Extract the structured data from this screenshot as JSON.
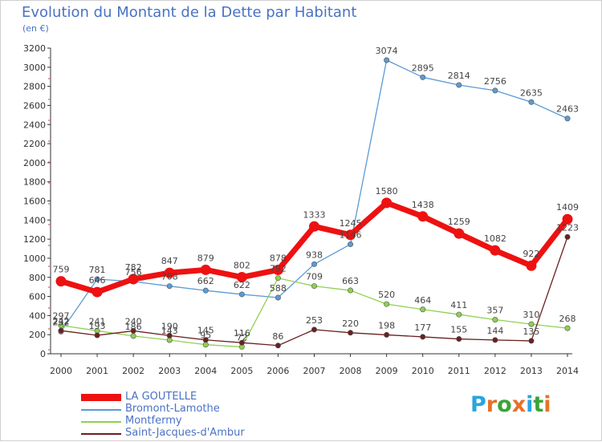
{
  "title": "Evolution du Montant de la Dette par Habitant",
  "subtitle": "(en €)",
  "logo_text": "Proxiti",
  "logo_colors": [
    "#2aa4de",
    "#e8702a",
    "#3aa33a",
    "#e8702a",
    "#2aa4de",
    "#3aa33a",
    "#e8702a"
  ],
  "chart_data": {
    "type": "line",
    "x": [
      2000,
      2001,
      2002,
      2003,
      2004,
      2005,
      2006,
      2007,
      2008,
      2009,
      2010,
      2011,
      2012,
      2013,
      2014
    ],
    "ylim": [
      0,
      3200
    ],
    "yticks": [
      0,
      200,
      400,
      600,
      800,
      1000,
      1200,
      1400,
      1600,
      1800,
      2000,
      2200,
      2400,
      2600,
      2800,
      3000,
      3200
    ],
    "grid": false,
    "legend_position": "bottom-left",
    "series": [
      {
        "name": "LA GOUTELLE",
        "color": "#ee1111",
        "values": [
          759,
          646,
          782,
          847,
          879,
          802,
          878,
          1333,
          1245,
          1580,
          1438,
          1259,
          1082,
          922,
          1409
        ]
      },
      {
        "name": "Bromont-Lamothe",
        "color": "#5b9bd5",
        "values": [
          232,
          781,
          756,
          708,
          662,
          622,
          588,
          938,
          1146,
          3074,
          2895,
          2814,
          2756,
          2635,
          2463
        ]
      },
      {
        "name": "Montfermy",
        "color": "#90d050",
        "values": [
          297,
          241,
          186,
          143,
          95,
          72,
          792,
          709,
          663,
          520,
          464,
          411,
          357,
          310,
          268
        ]
      },
      {
        "name": "Saint-Jacques-d'Ambur",
        "color": "#6b2020",
        "values": [
          242,
          193,
          240,
          190,
          145,
          116,
          86,
          253,
          220,
          198,
          177,
          155,
          144,
          135,
          1223
        ]
      }
    ]
  }
}
